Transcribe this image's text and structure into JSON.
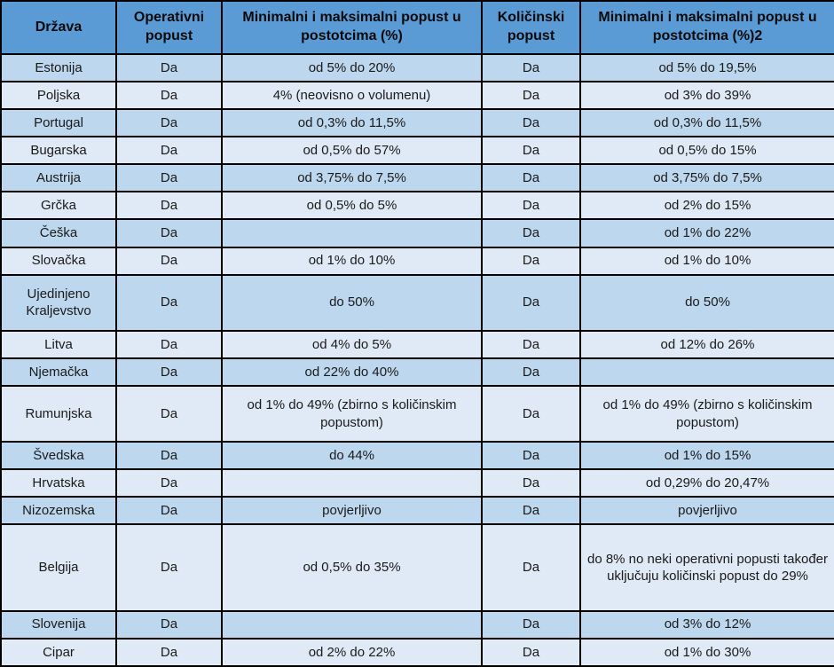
{
  "chart_data": {
    "type": "table",
    "title": "",
    "columns": [
      "Država",
      "Operativni popust",
      "Minimalni i maksimalni popust u postotcima (%)",
      "Količinski popust",
      "Minimalni i maksimalni popust u postotcima (%)2"
    ],
    "rows": [
      [
        "Estonija",
        "Da",
        "od 5% do 20%",
        "Da",
        "od 5% do 19,5%"
      ],
      [
        "Poljska",
        "Da",
        "4% (neovisno o volumenu)",
        "Da",
        "od 3% do 39%"
      ],
      [
        "Portugal",
        "Da",
        "od 0,3% do 11,5%",
        "Da",
        "od 0,3% do 11,5%"
      ],
      [
        "Bugarska",
        "Da",
        "od 0,5% do 57%",
        "Da",
        "od 0,5% do 15%"
      ],
      [
        "Austrija",
        "Da",
        "od 3,75% do 7,5%",
        "Da",
        "od 3,75% do 7,5%"
      ],
      [
        "Grčka",
        "Da",
        "od 0,5% do 5%",
        "Da",
        "od 2% do 15%"
      ],
      [
        "Češka",
        "Da",
        "",
        "Da",
        "od 1% do 22%"
      ],
      [
        "Slovačka",
        "Da",
        "od 1% do 10%",
        "Da",
        "od 1% do 10%"
      ],
      [
        "Ujedinjeno Kraljevstvo",
        "Da",
        "do 50%",
        "Da",
        "do 50%"
      ],
      [
        "Litva",
        "Da",
        "od 4% do 5%",
        "Da",
        "od 12% do 26%"
      ],
      [
        "Njemačka",
        "Da",
        "od 22% do 40%",
        "Da",
        ""
      ],
      [
        "Rumunjska",
        "Da",
        "od 1% do 49% (zbirno s količinskim popustom)",
        "Da",
        "od 1% do 49% (zbirno s količinskim popustom)"
      ],
      [
        "Švedska",
        "Da",
        "do 44%",
        "Da",
        "od 1% do 15%"
      ],
      [
        "Hrvatska",
        "Da",
        "",
        "Da",
        "od 0,29% do 20,47%"
      ],
      [
        "Nizozemska",
        "Da",
        "povjerljivo",
        "Da",
        "povjerljivo"
      ],
      [
        "Belgija",
        "Da",
        "od 0,5% do 35%",
        "Da",
        "do 8% no neki operativni popusti također uključuju količinski popust do 29%"
      ],
      [
        "Slovenija",
        "Da",
        "",
        "Da",
        "od 3% do 12%"
      ],
      [
        "Cipar",
        "Da",
        "od 2% do 22%",
        "Da",
        "od 1% do 30%"
      ]
    ]
  },
  "colors": {
    "header_bg": "#5B9BD5",
    "row_dark": "#BDD7EE",
    "row_light": "#DFEAF6",
    "border": "#000000",
    "text": "#1A1A1A",
    "header_text": "#0A0A0A"
  }
}
